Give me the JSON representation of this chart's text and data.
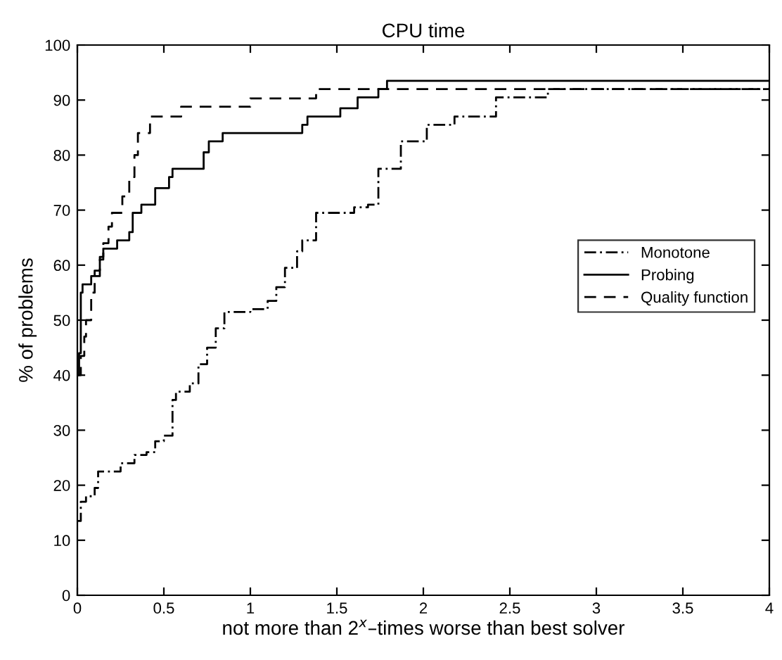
{
  "chart_data": {
    "type": "step",
    "title": "CPU time",
    "xlabel": "not more than 2$^{x}$–times worse than best solver",
    "ylabel": "% of problems",
    "xlim": [
      0,
      4
    ],
    "ylim": [
      0,
      100
    ],
    "xticks": [
      0,
      0.5,
      1,
      1.5,
      2,
      2.5,
      3,
      3.5,
      4
    ],
    "yticks": [
      0,
      10,
      20,
      30,
      40,
      50,
      60,
      70,
      80,
      90,
      100
    ],
    "grid": false,
    "legend": "right",
    "series": [
      {
        "name": "Monotone",
        "color": "#000000",
        "line_style": "dashdot",
        "x": [
          0,
          0.02,
          0.05,
          0.1,
          0.12,
          0.25,
          0.33,
          0.4,
          0.45,
          0.5,
          0.55,
          0.57,
          0.65,
          0.7,
          0.75,
          0.8,
          0.85,
          1.0,
          1.1,
          1.15,
          1.2,
          1.27,
          1.3,
          1.38,
          1.6,
          1.68,
          1.74,
          1.87,
          2.02,
          2.18,
          2.42,
          2.72,
          4
        ],
        "values": [
          13.5,
          17,
          18,
          19.5,
          22.5,
          24,
          25.5,
          26,
          28,
          29,
          35.5,
          37,
          38.5,
          42,
          45,
          48.5,
          51.5,
          52,
          53.5,
          56,
          59.5,
          62.5,
          64.5,
          69.5,
          70.5,
          71,
          77.5,
          82.5,
          85.5,
          87,
          90.5,
          92,
          92
        ]
      },
      {
        "name": "Probing",
        "color": "#000000",
        "line_style": "solid",
        "x": [
          0,
          0.01,
          0.02,
          0.03,
          0.08,
          0.13,
          0.15,
          0.23,
          0.3,
          0.32,
          0.37,
          0.45,
          0.53,
          0.55,
          0.73,
          0.76,
          0.84,
          1.3,
          1.33,
          1.52,
          1.62,
          1.74,
          1.79,
          4
        ],
        "values": [
          40,
          44,
          55,
          56.5,
          58,
          61,
          63,
          64.5,
          66,
          69.5,
          71,
          74,
          76,
          77.5,
          80.5,
          82.5,
          84,
          85.5,
          87,
          88.5,
          90.5,
          92,
          93.5,
          93.5
        ]
      },
      {
        "name": "Quality function",
        "color": "#000000",
        "line_style": "dashed",
        "x": [
          0,
          0.02,
          0.04,
          0.05,
          0.08,
          0.1,
          0.13,
          0.15,
          0.18,
          0.2,
          0.26,
          0.3,
          0.33,
          0.35,
          0.42,
          0.6,
          1.0,
          1.38,
          4
        ],
        "values": [
          40,
          43.5,
          47,
          50,
          55,
          59,
          61.5,
          64,
          67,
          69.5,
          72.5,
          76,
          80,
          84,
          87,
          88.8,
          90.3,
          92,
          92
        ]
      }
    ]
  }
}
